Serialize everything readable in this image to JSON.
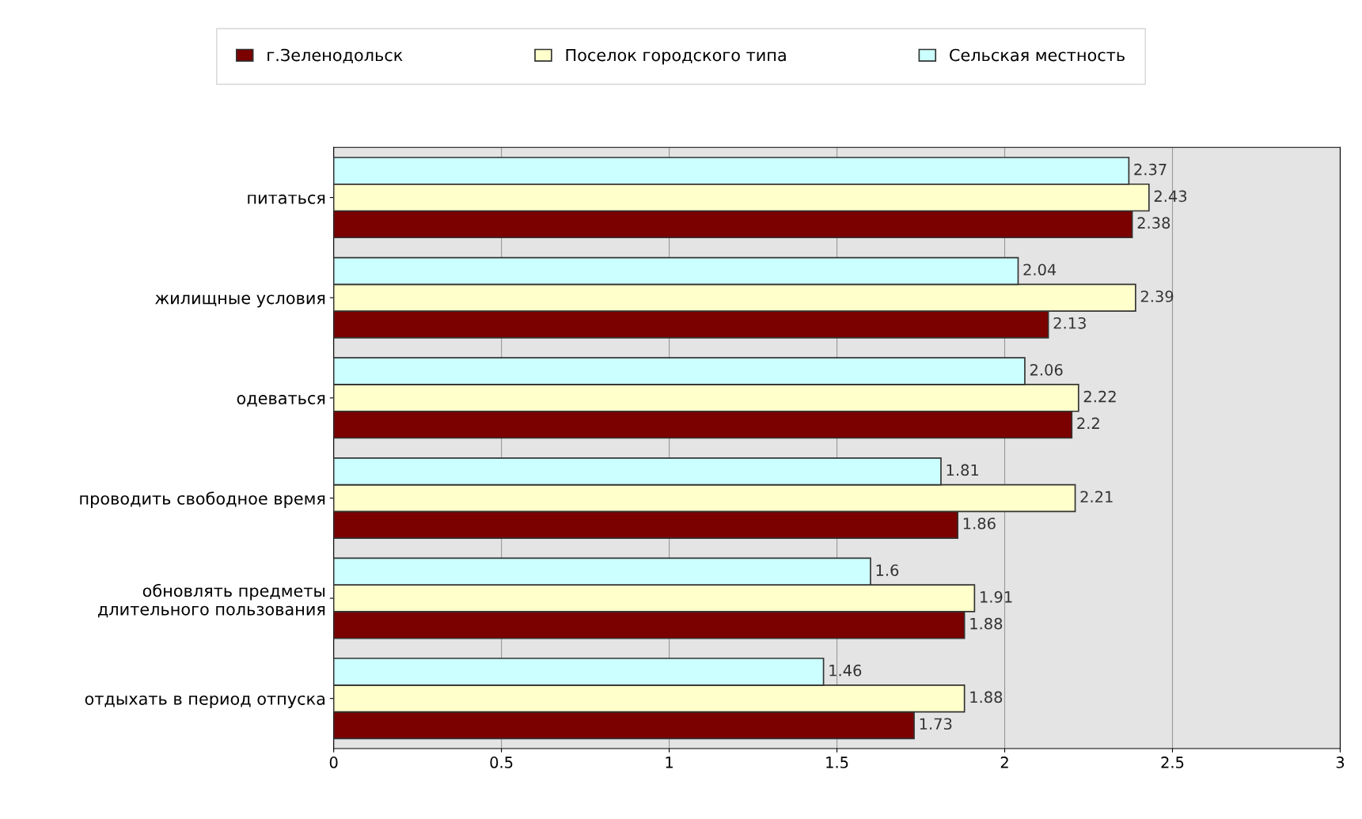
{
  "chart_data": {
    "type": "bar",
    "orientation": "horizontal",
    "categories": [
      "питаться",
      "жилищные условия",
      "одеваться",
      "проводить свободное время",
      "обновлять предметы\nдлительного пользования",
      "отдыхать в период отпуска"
    ],
    "series": [
      {
        "name": "г.Зеленодольск",
        "color": "#7b0000",
        "values": [
          2.38,
          2.13,
          2.2,
          1.86,
          1.88,
          1.73
        ]
      },
      {
        "name": "Поселок городского типа",
        "color": "#ffffcc",
        "values": [
          2.43,
          2.39,
          2.22,
          2.21,
          1.91,
          1.88
        ]
      },
      {
        "name": "Сельская местность",
        "color": "#ccffff",
        "values": [
          2.37,
          2.04,
          2.06,
          1.81,
          1.6,
          1.46
        ]
      }
    ],
    "xlim": [
      0,
      3
    ],
    "xticks": [
      0,
      0.5,
      1,
      1.5,
      2,
      2.5,
      3
    ],
    "grid": "x",
    "legend": "top",
    "data_labels": true
  }
}
